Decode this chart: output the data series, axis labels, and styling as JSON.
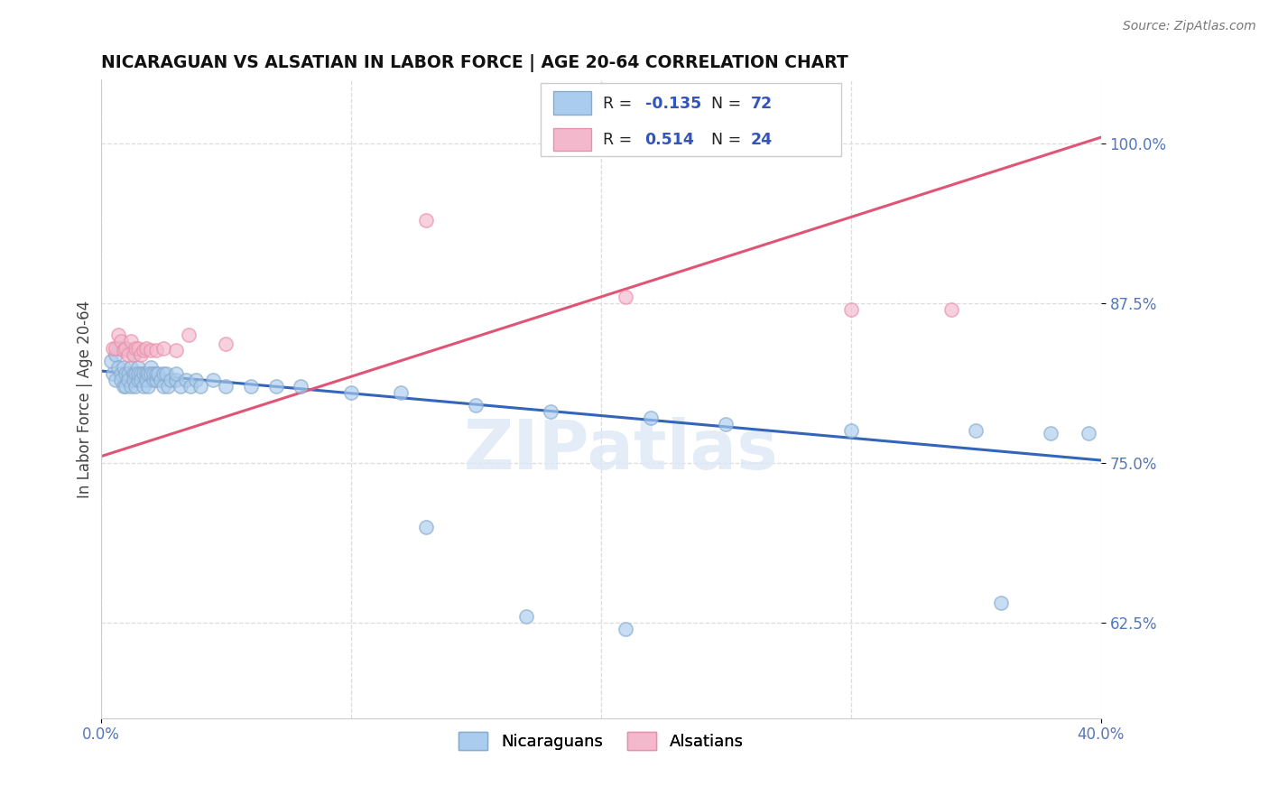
{
  "title": "NICARAGUAN VS ALSATIAN IN LABOR FORCE | AGE 20-64 CORRELATION CHART",
  "source": "Source: ZipAtlas.com",
  "ylabel_label": "In Labor Force | Age 20-64",
  "xlim": [
    0.0,
    0.4
  ],
  "ylim": [
    0.55,
    1.05
  ],
  "x_ticks": [
    0.0,
    0.1,
    0.2,
    0.3,
    0.4
  ],
  "y_ticks": [
    0.625,
    0.75,
    0.875,
    1.0
  ],
  "y_tick_labels": [
    "62.5%",
    "75.0%",
    "87.5%",
    "100.0%"
  ],
  "nicaraguan_face_color": "#aaccee",
  "nicaraguan_edge_color": "#88aacc",
  "alsatian_face_color": "#f4b8cc",
  "alsatian_edge_color": "#e890aa",
  "nicaraguan_line_color": "#3366bb",
  "alsatian_line_color": "#e05575",
  "background_color": "#ffffff",
  "grid_color": "#dddddd",
  "watermark": "ZIPatlas",
  "nicaraguan_x": [
    0.004,
    0.005,
    0.006,
    0.006,
    0.007,
    0.007,
    0.008,
    0.008,
    0.009,
    0.009,
    0.01,
    0.01,
    0.01,
    0.011,
    0.011,
    0.012,
    0.012,
    0.013,
    0.013,
    0.013,
    0.014,
    0.014,
    0.015,
    0.015,
    0.015,
    0.016,
    0.016,
    0.017,
    0.017,
    0.018,
    0.018,
    0.019,
    0.019,
    0.02,
    0.02,
    0.021,
    0.021,
    0.022,
    0.022,
    0.023,
    0.024,
    0.025,
    0.025,
    0.026,
    0.027,
    0.028,
    0.03,
    0.03,
    0.032,
    0.034,
    0.036,
    0.038,
    0.04,
    0.045,
    0.05,
    0.06,
    0.07,
    0.08,
    0.1,
    0.12,
    0.15,
    0.18,
    0.22,
    0.25,
    0.3,
    0.35,
    0.38,
    0.395,
    0.13,
    0.17,
    0.21,
    0.36
  ],
  "nicaraguan_y": [
    0.83,
    0.82,
    0.835,
    0.815,
    0.825,
    0.84,
    0.82,
    0.815,
    0.825,
    0.81,
    0.84,
    0.82,
    0.81,
    0.82,
    0.815,
    0.825,
    0.81,
    0.82,
    0.835,
    0.815,
    0.82,
    0.81,
    0.825,
    0.815,
    0.82,
    0.82,
    0.815,
    0.82,
    0.81,
    0.82,
    0.815,
    0.82,
    0.81,
    0.825,
    0.82,
    0.815,
    0.82,
    0.815,
    0.82,
    0.82,
    0.815,
    0.82,
    0.81,
    0.82,
    0.81,
    0.815,
    0.815,
    0.82,
    0.81,
    0.815,
    0.81,
    0.815,
    0.81,
    0.815,
    0.81,
    0.81,
    0.81,
    0.81,
    0.805,
    0.805,
    0.795,
    0.79,
    0.785,
    0.78,
    0.775,
    0.775,
    0.773,
    0.773,
    0.7,
    0.63,
    0.62,
    0.64
  ],
  "alsatian_x": [
    0.005,
    0.006,
    0.007,
    0.008,
    0.009,
    0.01,
    0.011,
    0.012,
    0.013,
    0.014,
    0.015,
    0.016,
    0.017,
    0.018,
    0.02,
    0.022,
    0.025,
    0.03,
    0.035,
    0.05,
    0.13,
    0.21,
    0.3,
    0.34
  ],
  "alsatian_y": [
    0.84,
    0.84,
    0.85,
    0.845,
    0.838,
    0.84,
    0.835,
    0.845,
    0.835,
    0.84,
    0.84,
    0.835,
    0.838,
    0.84,
    0.838,
    0.838,
    0.84,
    0.838,
    0.85,
    0.843,
    0.94,
    0.88,
    0.87,
    0.87
  ],
  "nic_line_x0": 0.0,
  "nic_line_y0": 0.822,
  "nic_line_x1": 0.4,
  "nic_line_y1": 0.752,
  "als_line_x0": 0.0,
  "als_line_y0": 0.755,
  "als_line_x1": 0.4,
  "als_line_y1": 1.005
}
